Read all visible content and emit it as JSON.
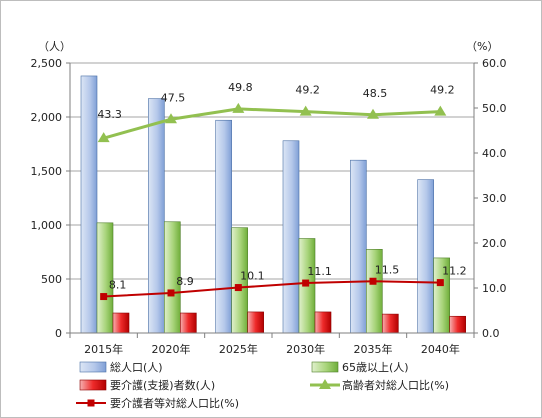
{
  "chart_data": {
    "type": "bar",
    "categories": [
      "2015年",
      "2020年",
      "2025年",
      "2030年",
      "2035年",
      "2040年"
    ],
    "left_axis": {
      "unit": "（人）",
      "ylim": [
        0,
        2500
      ],
      "ticks": [
        "0",
        "500",
        "1,000",
        "1,500",
        "2,000",
        "2,500"
      ]
    },
    "right_axis": {
      "unit": "（%）",
      "ylim": [
        0,
        60
      ],
      "ticks": [
        "0.0",
        "10.0",
        "20.0",
        "30.0",
        "40.0",
        "50.0",
        "60.0"
      ]
    },
    "grid": true,
    "legend": "bottom",
    "series": [
      {
        "name": "総人口(人)",
        "type": "bar",
        "axis": "left",
        "values": [
          2380,
          2170,
          1970,
          1780,
          1600,
          1420
        ],
        "color": "#8eaadb"
      },
      {
        "name": "65歳以上(人)",
        "type": "bar",
        "axis": "left",
        "values": [
          1020,
          1030,
          975,
          875,
          775,
          695
        ],
        "color": "#8cc152"
      },
      {
        "name": "要介護(支援)者数(人)",
        "type": "bar",
        "axis": "left",
        "values": [
          185,
          185,
          195,
          195,
          175,
          155
        ],
        "color": "#e0191b"
      },
      {
        "name": "高齢者対総人口比(%)",
        "type": "line",
        "axis": "right",
        "values": [
          43.3,
          47.5,
          49.8,
          49.2,
          48.5,
          49.2
        ],
        "labels": [
          "43.3",
          "47.5",
          "49.8",
          "49.2",
          "48.5",
          "49.2"
        ],
        "color": "#92c050"
      },
      {
        "name": "要介護者等対総人口比(%)",
        "type": "line",
        "axis": "right",
        "values": [
          8.1,
          8.9,
          10.1,
          11.1,
          11.5,
          11.2
        ],
        "labels": [
          "8.1",
          "8.9",
          "10.1",
          "11.1",
          "11.5",
          "11.2"
        ],
        "color": "#c00000"
      }
    ]
  }
}
